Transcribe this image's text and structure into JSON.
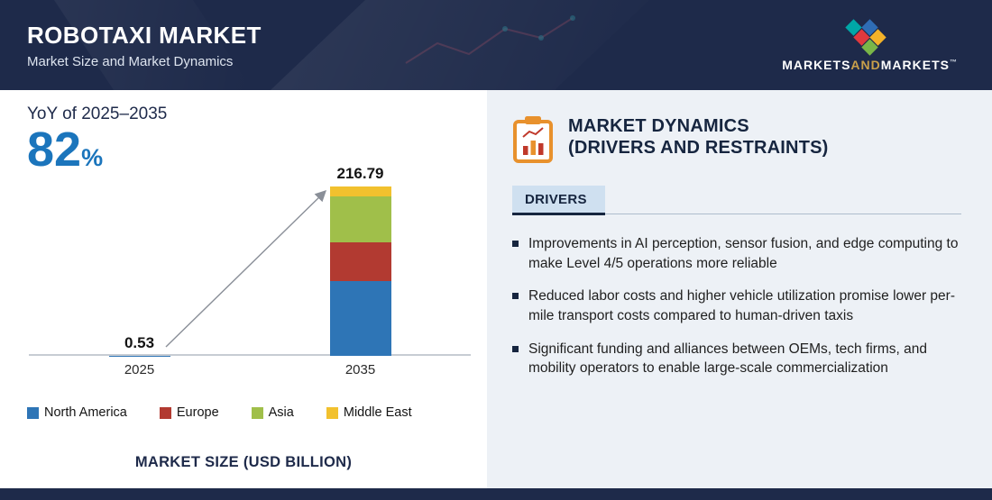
{
  "header": {
    "title": "ROBOTAXI MARKET",
    "subtitle": "Market Size and Market Dynamics",
    "logo": {
      "part1": "MARKETS",
      "part2": "AND",
      "part3": "MARKETS",
      "tm": "™"
    }
  },
  "left_panel": {
    "yoy_label": "YoY of 2025–2035",
    "yoy_value": "82",
    "yoy_unit": "%",
    "axis_title": "MARKET SIZE (USD BILLION)"
  },
  "chart_data": {
    "type": "bar",
    "stacked": true,
    "categories": [
      "2025",
      "2035"
    ],
    "series": [
      {
        "name": "North America",
        "color": "#2e75b6",
        "values": [
          0.23,
          95.4
        ]
      },
      {
        "name": "Europe",
        "color": "#b23a31",
        "values": [
          0.12,
          50.0
        ]
      },
      {
        "name": "Asia",
        "color": "#a0bf4a",
        "values": [
          0.13,
          58.4
        ]
      },
      {
        "name": "Middle East",
        "color": "#f2c12e",
        "values": [
          0.05,
          12.99
        ]
      }
    ],
    "totals": [
      0.53,
      216.79
    ],
    "total_labels": [
      "0.53",
      "216.79"
    ],
    "title": "",
    "xlabel": "",
    "ylabel": "MARKET SIZE (USD BILLION)",
    "ylim": [
      0,
      230
    ],
    "grid": false,
    "legend_position": "bottom"
  },
  "right_panel": {
    "heading_line1": "MARKET DYNAMICS",
    "heading_line2": "(DRIVERS AND RESTRAINTS)",
    "tab_label": "DRIVERS",
    "bullets": [
      "Improvements in AI perception, sensor fusion, and edge computing to make Level 4/5 operations more reliable",
      "Reduced labor costs and higher vehicle utilization promise lower per-mile transport costs compared to human-driven taxis",
      "Significant funding and alliances between OEMs, tech firms, and mobility operators to enable large-scale commercialization"
    ]
  },
  "colors": {
    "navy": "#1e2a4a",
    "accent_blue": "#1b75bc",
    "panel_bg": "#edf1f6",
    "tab_bg": "#cfe0f0",
    "axis_line": "#c7ccd3"
  }
}
